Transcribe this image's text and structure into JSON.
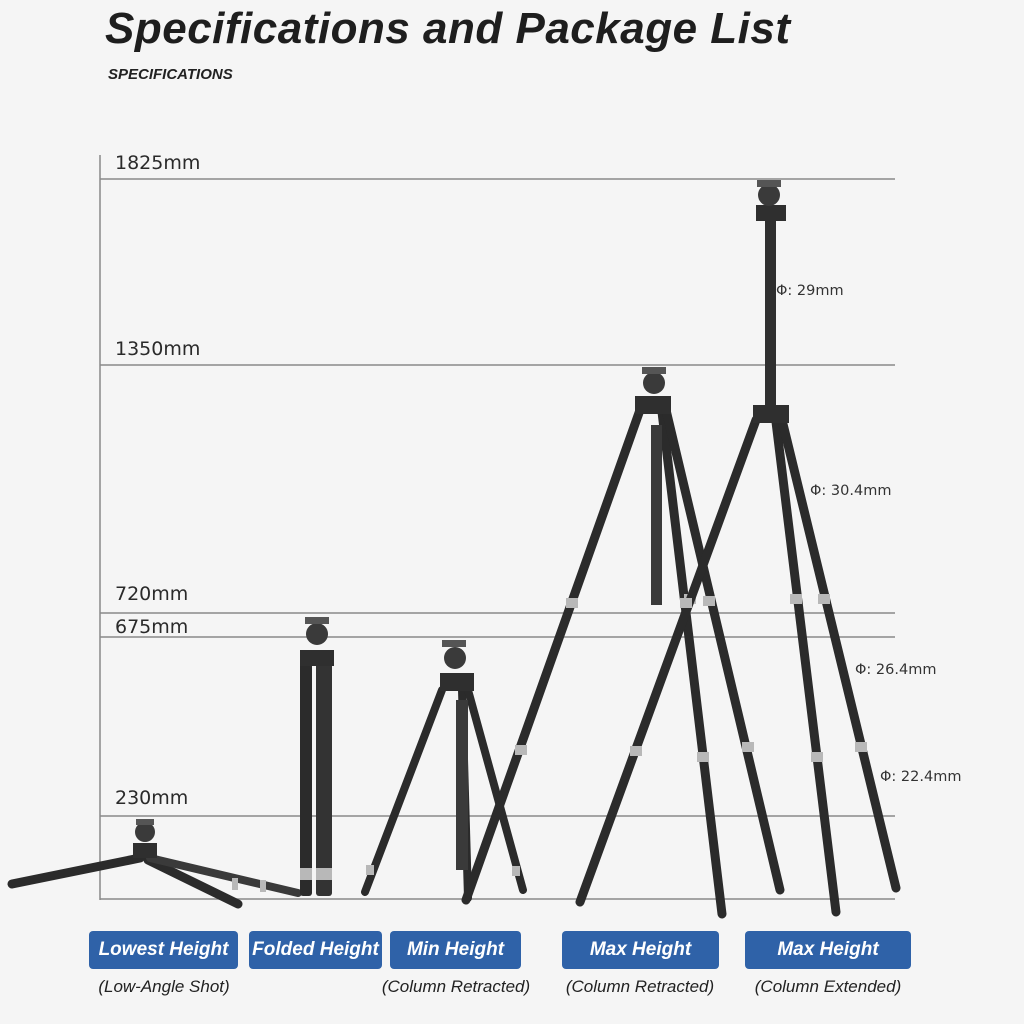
{
  "header": {
    "title": "Specifications and Package List",
    "subtitle": "SPECIFICATIONS"
  },
  "height_marks": [
    "1825mm",
    "1350mm",
    "720mm",
    "675mm",
    "230mm"
  ],
  "diameters": [
    "Φ: 29mm",
    "Φ: 30.4mm",
    "Φ: 26.4mm",
    "Φ: 22.4mm"
  ],
  "modes": [
    {
      "label": "Lowest Height",
      "caption": "(Low-Angle Shot)"
    },
    {
      "label": "Folded Height",
      "caption": ""
    },
    {
      "label": "Min Height",
      "caption": "(Column Retracted)"
    },
    {
      "label": "Max Height",
      "caption": "(Column Retracted)"
    },
    {
      "label": "Max Height",
      "caption": "(Column Extended)"
    }
  ],
  "colors": {
    "accent": "#2f62a8",
    "leg": "#2b2b2b",
    "ring": "#b8b8b8"
  }
}
